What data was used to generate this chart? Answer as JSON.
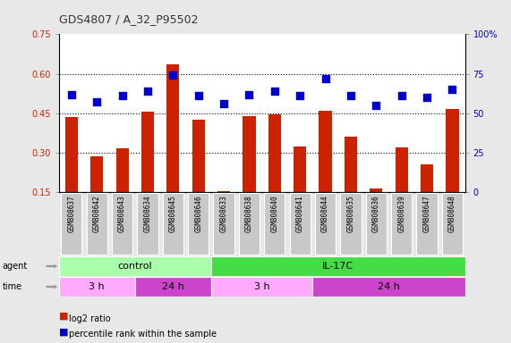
{
  "title": "GDS4807 / A_32_P95502",
  "samples": [
    "GSM808637",
    "GSM808642",
    "GSM808643",
    "GSM808634",
    "GSM808645",
    "GSM808646",
    "GSM808633",
    "GSM808638",
    "GSM808640",
    "GSM808641",
    "GSM808644",
    "GSM808635",
    "GSM808636",
    "GSM808639",
    "GSM808647",
    "GSM808648"
  ],
  "log2_ratio": [
    0.435,
    0.285,
    0.315,
    0.455,
    0.635,
    0.425,
    0.152,
    0.44,
    0.445,
    0.325,
    0.46,
    0.36,
    0.165,
    0.32,
    0.255,
    0.465
  ],
  "percentile": [
    62,
    57,
    61,
    64,
    74,
    61,
    56,
    62,
    64,
    61,
    72,
    61,
    55,
    61,
    60,
    65
  ],
  "ylim_left": [
    0.15,
    0.75
  ],
  "ylim_right": [
    0,
    100
  ],
  "yticks_left": [
    0.15,
    0.3,
    0.45,
    0.6,
    0.75
  ],
  "yticks_right": [
    0,
    25,
    50,
    75,
    100
  ],
  "bar_color": "#cc2200",
  "dot_color": "#0000cc",
  "agent_groups": [
    {
      "label": "control",
      "start": 0,
      "end": 6,
      "color": "#aaffaa"
    },
    {
      "label": "IL-17C",
      "start": 6,
      "end": 16,
      "color": "#44dd44"
    }
  ],
  "time_groups": [
    {
      "label": "3 h",
      "start": 0,
      "end": 3,
      "color": "#ffaaff"
    },
    {
      "label": "24 h",
      "start": 3,
      "end": 6,
      "color": "#cc44cc"
    },
    {
      "label": "3 h",
      "start": 6,
      "end": 10,
      "color": "#ffaaff"
    },
    {
      "label": "24 h",
      "start": 10,
      "end": 16,
      "color": "#cc44cc"
    }
  ],
  "legend_items": [
    {
      "label": "log2 ratio",
      "color": "#cc2200"
    },
    {
      "label": "percentile rank within the sample",
      "color": "#0000cc"
    }
  ],
  "dotted_lines": [
    0.3,
    0.45,
    0.6
  ],
  "background_color": "#e8e8e8",
  "plot_bg": "#ffffff",
  "tick_label_color_left": "#cc2200",
  "tick_label_color_right": "#0000cc",
  "bar_width": 0.5,
  "dot_size": 35,
  "xtick_bg": "#c8c8c8",
  "arrow_color": "#999999"
}
